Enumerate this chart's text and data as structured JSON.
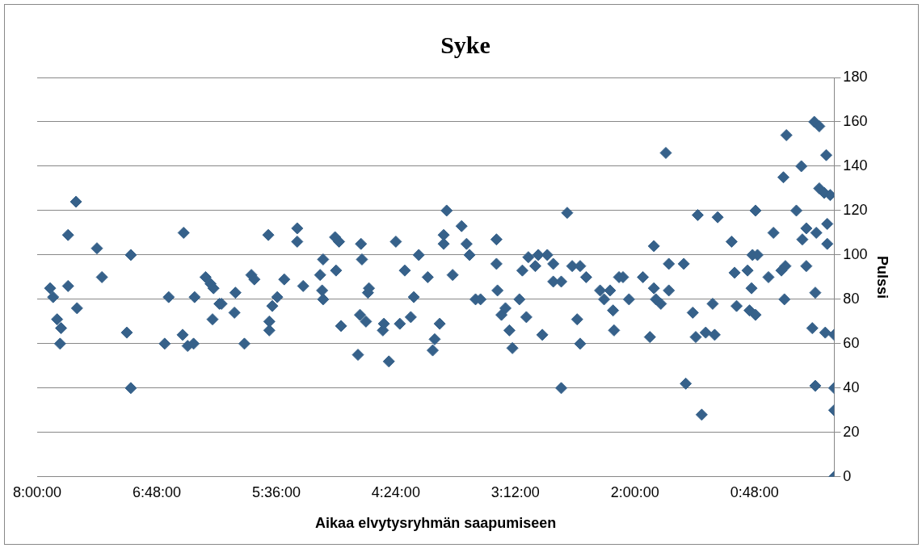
{
  "chart_data": {
    "type": "scatter",
    "title": "Syke",
    "xlabel": "Aikaa elvytysryhmän saapumiseen",
    "ylabel": "Pulssi",
    "xlim": [
      8,
      0
    ],
    "xticks": [
      {
        "value": 8,
        "label": "8:00:00"
      },
      {
        "value": 6.8,
        "label": "6:48:00"
      },
      {
        "value": 5.6,
        "label": "5:36:00"
      },
      {
        "value": 4.4,
        "label": "4:24:00"
      },
      {
        "value": 3.2,
        "label": "3:12:00"
      },
      {
        "value": 2,
        "label": "2:00:00"
      },
      {
        "value": 0.8,
        "label": "0:48:00"
      }
    ],
    "ylim": [
      0,
      180
    ],
    "yticks": [
      0,
      20,
      40,
      60,
      80,
      100,
      120,
      140,
      160,
      180
    ],
    "grid": "y",
    "legend": false,
    "marker": "diamond",
    "series": [
      {
        "color": "#36618a",
        "x": [
          7.87,
          7.84,
          7.8,
          7.76,
          7.77,
          7.69,
          7.69,
          7.61,
          7.6,
          7.4,
          7.35,
          7.1,
          7.06,
          7.06,
          6.72,
          6.68,
          6.53,
          6.54,
          6.49,
          6.43,
          6.42,
          6.31,
          6.26,
          6.24,
          6.23,
          6.17,
          6.15,
          6.02,
          6.01,
          5.92,
          5.85,
          5.82,
          5.68,
          5.67,
          5.67,
          5.64,
          5.59,
          5.52,
          5.39,
          5.39,
          5.33,
          5.16,
          5.13,
          5.14,
          5.13,
          5.01,
          4.97,
          5.0,
          4.95,
          4.78,
          4.76,
          4.75,
          4.74,
          4.7,
          4.67,
          4.68,
          4.53,
          4.52,
          4.47,
          4.4,
          4.36,
          4.31,
          4.25,
          4.22,
          4.17,
          4.08,
          4.03,
          4.01,
          3.96,
          3.92,
          3.92,
          3.89,
          3.83,
          3.74,
          3.69,
          3.66,
          3.6,
          3.55,
          3.39,
          3.39,
          3.38,
          3.34,
          3.3,
          3.26,
          3.23,
          3.16,
          3.13,
          3.07,
          3.09,
          3.0,
          2.97,
          2.93,
          2.88,
          2.82,
          2.82,
          2.74,
          2.74,
          2.68,
          2.63,
          2.58,
          2.55,
          2.55,
          2.49,
          2.35,
          2.31,
          2.25,
          2.22,
          2.21,
          2.16,
          2.12,
          2.06,
          1.92,
          1.85,
          1.81,
          1.81,
          1.79,
          1.74,
          1.69,
          1.66,
          1.66,
          1.51,
          1.49,
          1.42,
          1.39,
          1.37,
          1.33,
          1.29,
          1.22,
          1.2,
          1.17,
          1.03,
          1.0,
          0.98,
          0.87,
          0.85,
          0.82,
          0.83,
          0.79,
          0.79,
          0.77,
          0.66,
          0.61,
          0.53,
          0.51,
          0.5,
          0.48,
          0.49,
          0.38,
          0.33,
          0.32,
          0.28,
          0.28,
          0.22,
          0.2,
          0.19,
          0.19,
          0.18,
          0.15,
          0.15,
          0.1,
          0.09,
          0.08,
          0.07,
          0.07,
          0.04,
          0,
          0,
          0,
          0
        ],
        "values": [
          85,
          81,
          71,
          67,
          60,
          86,
          109,
          124,
          76,
          103,
          90,
          65,
          40,
          100,
          60,
          81,
          110,
          64,
          59,
          60,
          81,
          90,
          87,
          71,
          85,
          78,
          78,
          74,
          83,
          60,
          91,
          89,
          109,
          70,
          66,
          77,
          81,
          89,
          112,
          106,
          86,
          91,
          98,
          84,
          80,
          108,
          106,
          93,
          68,
          55,
          73,
          105,
          98,
          70,
          85,
          83,
          66,
          69,
          52,
          106,
          69,
          93,
          72,
          81,
          100,
          90,
          57,
          62,
          69,
          109,
          105,
          120,
          91,
          113,
          105,
          100,
          80,
          80,
          107,
          96,
          84,
          73,
          76,
          66,
          58,
          80,
          93,
          99,
          72,
          95,
          100,
          64,
          100,
          96,
          88,
          88,
          40,
          119,
          95,
          71,
          95,
          60,
          90,
          84,
          80,
          84,
          75,
          66,
          90,
          90,
          80,
          90,
          63,
          104,
          85,
          80,
          78,
          146,
          96,
          84,
          96,
          42,
          74,
          63,
          118,
          28,
          65,
          78,
          64,
          117,
          106,
          92,
          77,
          93,
          75,
          100,
          85,
          73,
          120,
          100,
          90,
          110,
          93,
          135,
          80,
          154,
          95,
          120,
          140,
          107,
          112,
          95,
          67,
          160,
          41,
          83,
          110,
          158,
          130,
          128,
          65,
          145,
          114,
          105,
          127,
          64,
          40,
          30,
          0
        ]
      }
    ]
  }
}
